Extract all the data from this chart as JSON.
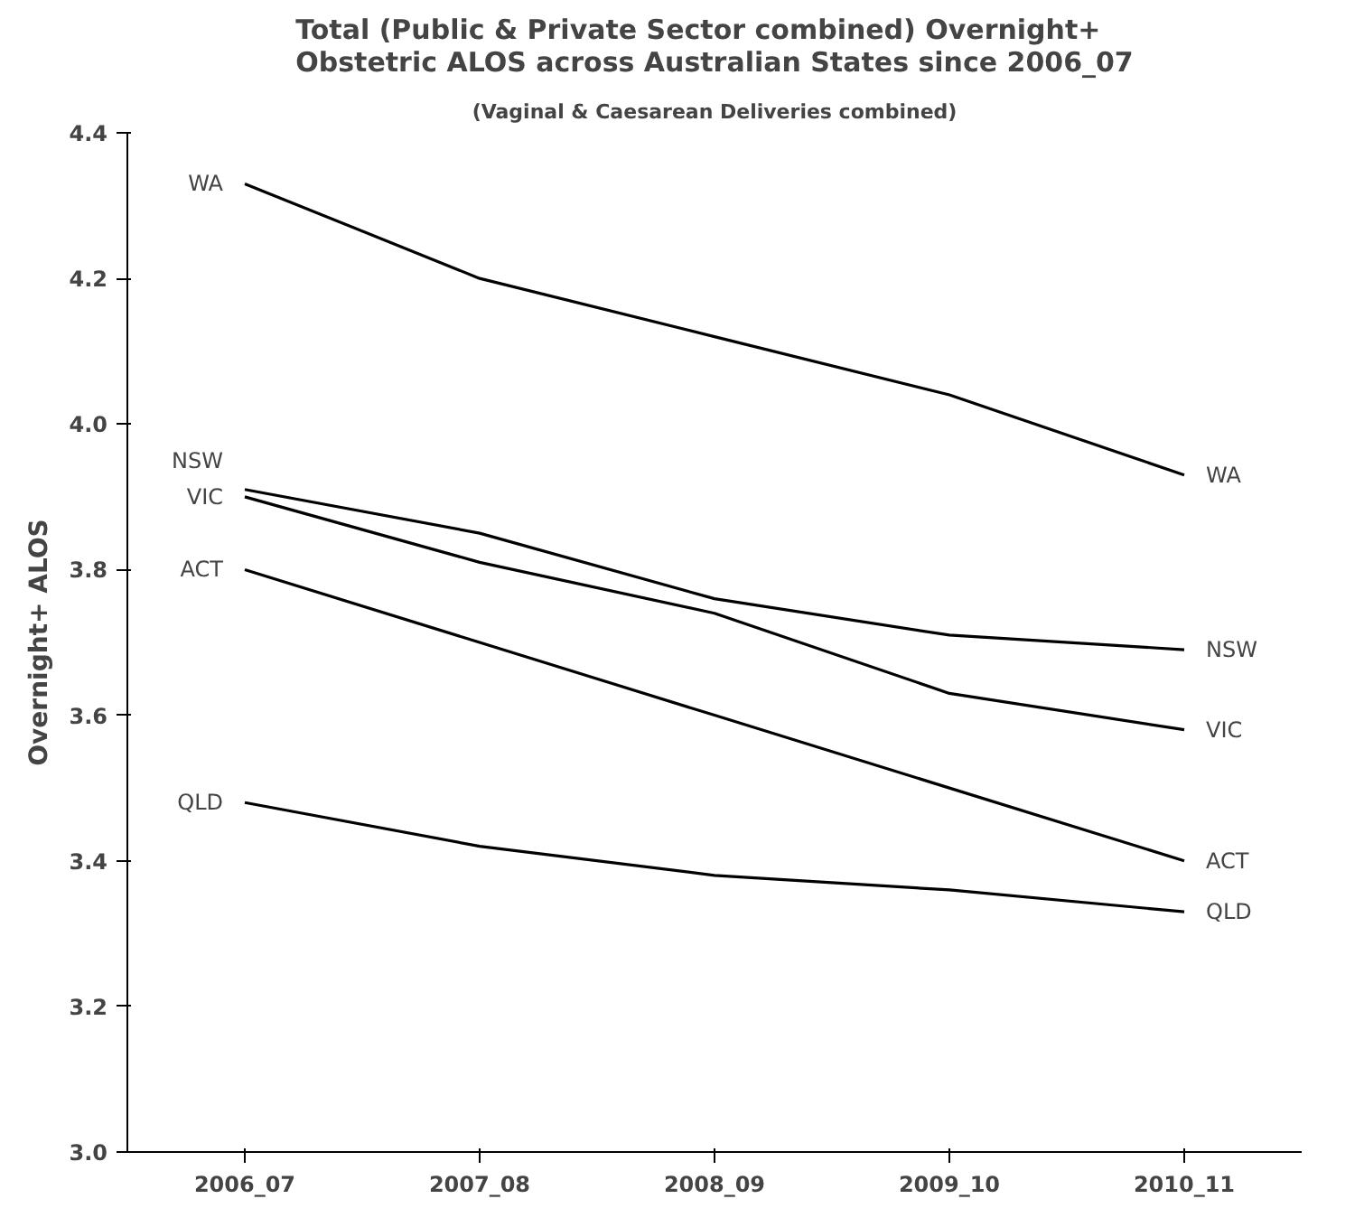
{
  "chart_data": {
    "type": "line",
    "title": "Total (Public & Private Sector combined) Overnight+ Obstetric ALOS across Australian States since 2006_07",
    "subtitle": "(Vaginal & Caesarean Deliveries combined)",
    "ylabel": "Overnight+ ALOS",
    "categories": [
      "2006_07",
      "2007_08",
      "2008_09",
      "2009_10",
      "2010_11"
    ],
    "series": [
      {
        "name": "WA",
        "color": "#000000",
        "values": [
          4.33,
          4.2,
          4.12,
          4.04,
          3.93
        ]
      },
      {
        "name": "NSW",
        "color": "#000000",
        "values": [
          3.91,
          3.85,
          3.76,
          3.71,
          3.69
        ]
      },
      {
        "name": "VIC",
        "color": "#000000",
        "values": [
          3.9,
          3.81,
          3.74,
          3.63,
          3.58
        ]
      },
      {
        "name": "ACT",
        "color": "#000000",
        "values": [
          3.8,
          3.7,
          3.6,
          3.5,
          3.4
        ]
      },
      {
        "name": "QLD",
        "color": "#000000",
        "values": [
          3.48,
          3.42,
          3.38,
          3.36,
          3.33
        ]
      }
    ],
    "ylim": [
      3.0,
      4.4
    ],
    "yticks": [
      {
        "value": 3.0,
        "label": "3.0"
      },
      {
        "value": 3.2,
        "label": "3.2"
      },
      {
        "value": 3.4,
        "label": "3.4"
      },
      {
        "value": 3.6,
        "label": "3.6"
      },
      {
        "value": 3.8,
        "label": "3.8"
      },
      {
        "value": 4.0,
        "label": "4.0"
      },
      {
        "value": 4.2,
        "label": "4.2"
      },
      {
        "value": 4.4,
        "label": "4.4"
      }
    ],
    "grid": false,
    "marker": "none",
    "line_style": "solid"
  }
}
